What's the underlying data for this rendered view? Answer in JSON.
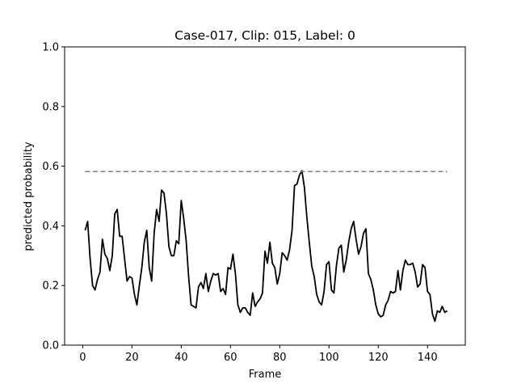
{
  "chart_data": {
    "type": "line",
    "title": "Case-017, Clip: 015, Label: 0",
    "xlabel": "Frame",
    "ylabel": "predicted probability",
    "xlim": [
      -7.35,
      155.35
    ],
    "ylim": [
      0.0,
      1.0
    ],
    "xticks": [
      0,
      20,
      40,
      60,
      80,
      100,
      120,
      140
    ],
    "yticks": [
      0.0,
      0.2,
      0.4,
      0.6,
      0.8,
      1.0
    ],
    "xtick_labels": [
      "0",
      "20",
      "40",
      "60",
      "80",
      "100",
      "120",
      "140"
    ],
    "ytick_labels": [
      "0.0",
      "0.2",
      "0.4",
      "0.6",
      "0.8",
      "1.0"
    ],
    "grid": false,
    "series": [
      {
        "style": "solid",
        "color": "#000000",
        "x": [
          1,
          2,
          3,
          4,
          5,
          6,
          7,
          8,
          9,
          10,
          11,
          12,
          13,
          14,
          15,
          16,
          17,
          18,
          19,
          20,
          21,
          22,
          23,
          24,
          25,
          26,
          27,
          28,
          29,
          30,
          31,
          32,
          33,
          34,
          35,
          36,
          37,
          38,
          39,
          40,
          41,
          42,
          43,
          44,
          45,
          46,
          47,
          48,
          49,
          50,
          51,
          52,
          53,
          54,
          55,
          56,
          57,
          58,
          59,
          60,
          61,
          62,
          63,
          64,
          65,
          66,
          67,
          68,
          69,
          70,
          71,
          72,
          73,
          74,
          75,
          76,
          77,
          78,
          79,
          80,
          81,
          82,
          83,
          84,
          85,
          86,
          87,
          88,
          89,
          90,
          91,
          92,
          93,
          94,
          95,
          96,
          97,
          98,
          99,
          100,
          101,
          102,
          103,
          104,
          105,
          106,
          107,
          108,
          109,
          110,
          111,
          112,
          113,
          114,
          115,
          116,
          117,
          118,
          119,
          120,
          121,
          122,
          123,
          124,
          125,
          126,
          127,
          128,
          129,
          130,
          131,
          132,
          133,
          134,
          135,
          136,
          137,
          138,
          139,
          140,
          141,
          142,
          143,
          144,
          145,
          146,
          147,
          148
        ],
        "y": [
          0.385,
          0.415,
          0.29,
          0.2,
          0.185,
          0.22,
          0.245,
          0.355,
          0.305,
          0.29,
          0.25,
          0.3,
          0.44,
          0.455,
          0.365,
          0.365,
          0.29,
          0.215,
          0.23,
          0.225,
          0.17,
          0.135,
          0.2,
          0.26,
          0.345,
          0.385,
          0.26,
          0.215,
          0.375,
          0.455,
          0.415,
          0.52,
          0.51,
          0.44,
          0.33,
          0.3,
          0.3,
          0.35,
          0.34,
          0.485,
          0.425,
          0.35,
          0.23,
          0.135,
          0.13,
          0.125,
          0.195,
          0.21,
          0.19,
          0.24,
          0.18,
          0.215,
          0.24,
          0.235,
          0.24,
          0.18,
          0.19,
          0.17,
          0.26,
          0.255,
          0.305,
          0.24,
          0.135,
          0.11,
          0.125,
          0.125,
          0.11,
          0.1,
          0.175,
          0.13,
          0.145,
          0.155,
          0.175,
          0.315,
          0.275,
          0.345,
          0.275,
          0.26,
          0.205,
          0.24,
          0.31,
          0.3,
          0.285,
          0.32,
          0.385,
          0.535,
          0.54,
          0.57,
          0.585,
          0.53,
          0.43,
          0.345,
          0.265,
          0.23,
          0.17,
          0.145,
          0.135,
          0.18,
          0.27,
          0.28,
          0.185,
          0.175,
          0.265,
          0.325,
          0.335,
          0.245,
          0.285,
          0.345,
          0.39,
          0.415,
          0.355,
          0.305,
          0.33,
          0.375,
          0.39,
          0.24,
          0.22,
          0.185,
          0.135,
          0.105,
          0.095,
          0.1,
          0.135,
          0.15,
          0.18,
          0.175,
          0.18,
          0.25,
          0.185,
          0.25,
          0.285,
          0.27,
          0.27,
          0.275,
          0.245,
          0.195,
          0.205,
          0.27,
          0.26,
          0.18,
          0.17,
          0.105,
          0.08,
          0.115,
          0.11,
          0.13,
          0.11,
          0.115
        ]
      },
      {
        "style": "dashed",
        "color": "#808080",
        "x": [
          1,
          148
        ],
        "y": [
          0.582,
          0.582
        ]
      }
    ]
  }
}
